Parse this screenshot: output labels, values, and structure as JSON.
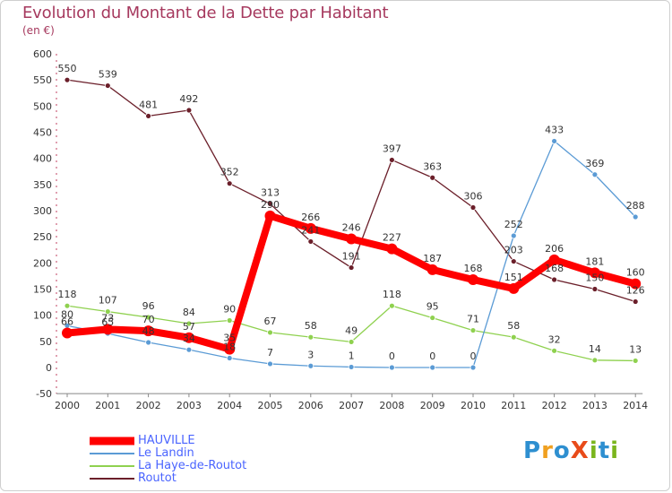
{
  "title": "Evolution du Montant de la Dette par Habitant",
  "subtitle": "(en €)",
  "logo": {
    "text": "ProXiti",
    "colors": [
      "#2e8fd0",
      "#f0a020",
      "#2e8fd0",
      "#e84b1a",
      "#7ab51d",
      "#2e8fd0",
      "#7ab51d"
    ]
  },
  "chart_data": {
    "type": "line",
    "title": "Evolution du Montant de la Dette par Habitant",
    "ylabel": "(en €)",
    "xlabel": "",
    "x": [
      "2000",
      "2001",
      "2002",
      "2003",
      "2004",
      "2005",
      "2006",
      "2007",
      "2008",
      "2009",
      "2010",
      "2011",
      "2012",
      "2013",
      "2014"
    ],
    "ylim": [
      -50,
      600
    ],
    "yticks": [
      -50,
      0,
      50,
      100,
      150,
      200,
      250,
      300,
      350,
      400,
      450,
      500,
      550,
      600
    ],
    "grid": false,
    "legend_position": "bottom-left",
    "series": [
      {
        "name": "HAUVILLE",
        "color": "#ff0000",
        "values": [
          66,
          73,
          70,
          57,
          35,
          290,
          266,
          246,
          227,
          187,
          168,
          151,
          206,
          181,
          160
        ],
        "labels": [
          "66",
          "73",
          "70",
          "57",
          "35",
          "290",
          "266",
          "246",
          "227",
          "187",
          "168",
          "151",
          "206",
          "181",
          "160"
        ]
      },
      {
        "name": "Le Landin",
        "color": "#5b9bd5",
        "values": [
          80,
          65,
          48,
          34,
          18,
          7,
          3,
          1,
          0,
          0,
          0,
          252,
          433,
          369,
          288
        ],
        "labels": [
          "80",
          "65",
          "48",
          "34",
          "18",
          "7",
          "3",
          "1",
          "0",
          "0",
          "0",
          "252",
          "433",
          "369",
          "288"
        ]
      },
      {
        "name": "La Haye-de-Routot",
        "color": "#8fd14f",
        "values": [
          118,
          107,
          96,
          84,
          90,
          67,
          58,
          49,
          118,
          95,
          71,
          58,
          32,
          14,
          13
        ],
        "labels": [
          "118",
          "107",
          "96",
          "84",
          "90",
          "67",
          "58",
          "49",
          "118",
          "95",
          "71",
          "58",
          "32",
          "14",
          "13"
        ]
      },
      {
        "name": "Routot",
        "color": "#6b1f2a",
        "values": [
          550,
          539,
          481,
          492,
          352,
          313,
          241,
          191,
          397,
          363,
          306,
          203,
          168,
          150,
          126
        ],
        "labels": [
          "550",
          "539",
          "481",
          "492",
          "352",
          "313",
          "241",
          "191",
          "397",
          "363",
          "306",
          "203",
          "168",
          "150",
          "126"
        ]
      }
    ]
  }
}
